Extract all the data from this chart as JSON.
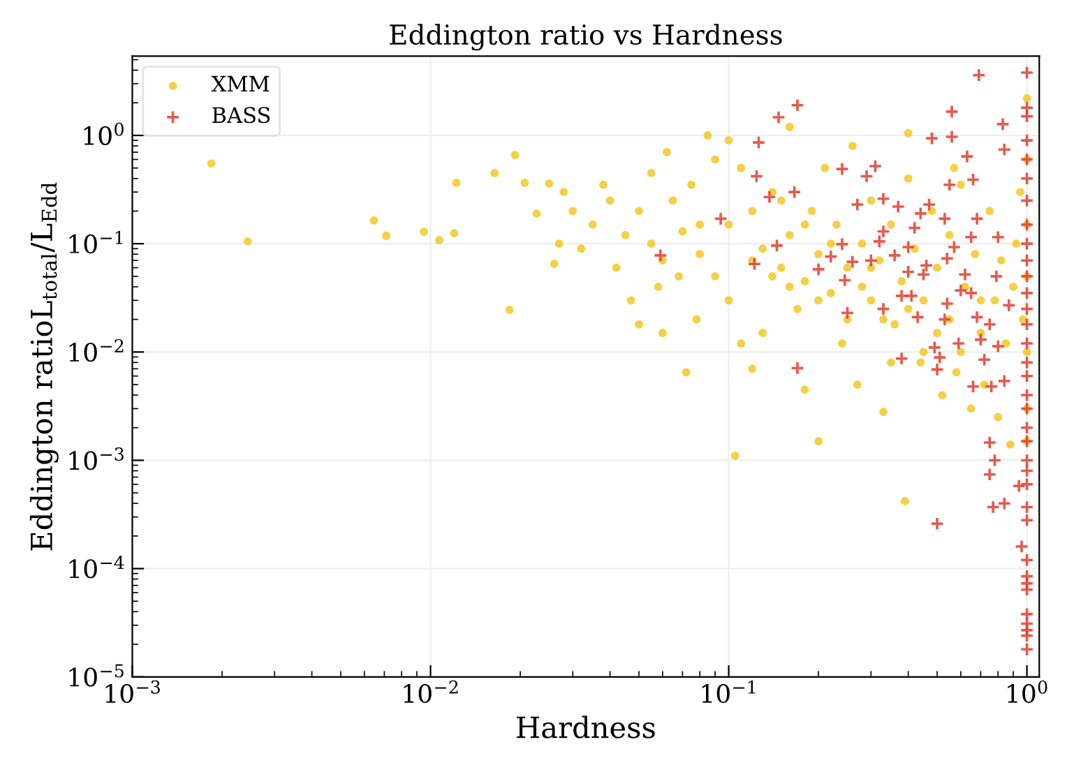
{
  "chart_data": {
    "type": "scatter",
    "title": "Eddington ratio vs Hardness",
    "xlabel": "Hardness",
    "ylabel": "Eddington ratioL$_{total}$/L$_{Edd}$",
    "log": "xy",
    "grid": true,
    "legend": "top left",
    "xlim": [
      0.001,
      1.1
    ],
    "ylim": [
      1e-05,
      5.4
    ],
    "xticks": [
      {
        "value": 0.001,
        "label": "10$^{−3}$"
      },
      {
        "value": 0.01,
        "label": "10$^{−2}$"
      },
      {
        "value": 0.1,
        "label": "10$^{−1}$"
      },
      {
        "value": 1,
        "label": "10$^{0}$"
      }
    ],
    "yticks": [
      {
        "value": 1e-05,
        "label": "10$^{−5}$"
      },
      {
        "value": 0.0001,
        "label": "10$^{−4}$"
      },
      {
        "value": 0.001,
        "label": "10$^{−3}$"
      },
      {
        "value": 0.01,
        "label": "10$^{−2}$"
      },
      {
        "value": 0.1,
        "label": "10$^{−1}$"
      },
      {
        "value": 1,
        "label": "10$^{0}$"
      }
    ],
    "series": [
      {
        "name": "XMM",
        "color": "#f2c416",
        "marker": "circle",
        "x": [
          0.00184,
          0.00244,
          0.00646,
          0.0071,
          0.0095,
          0.0107,
          0.012,
          0.0122,
          0.0164,
          0.0192,
          0.0184,
          0.0207,
          0.0227,
          0.025,
          0.028,
          0.03,
          0.027,
          0.026,
          0.032,
          0.035,
          0.038,
          0.04,
          0.042,
          0.045,
          0.047,
          0.05,
          0.05,
          0.055,
          0.055,
          0.058,
          0.06,
          0.062,
          0.065,
          0.068,
          0.07,
          0.072,
          0.075,
          0.078,
          0.08,
          0.085,
          0.09,
          0.1,
          0.11,
          0.12,
          0.1,
          0.09,
          0.1,
          0.11,
          0.105,
          0.12,
          0.13,
          0.14,
          0.15,
          0.16,
          0.16,
          0.17,
          0.18,
          0.18,
          0.19,
          0.2,
          0.2,
          0.21,
          0.22,
          0.23,
          0.24,
          0.25,
          0.26,
          0.27,
          0.28,
          0.3,
          0.3,
          0.32,
          0.33,
          0.35,
          0.36,
          0.38,
          0.39,
          0.4,
          0.42,
          0.44,
          0.45,
          0.48,
          0.5,
          0.52,
          0.55,
          0.55,
          0.58,
          0.6,
          0.62,
          0.65,
          0.67,
          0.7,
          0.72,
          0.75,
          0.78,
          0.8,
          0.82,
          0.85,
          0.88,
          0.9,
          0.92,
          0.95,
          0.97,
          1.0,
          1.0,
          1.0,
          1.0,
          1.0,
          1.0,
          1.0,
          0.4,
          0.57,
          0.12,
          0.14,
          0.16,
          0.2,
          0.22,
          0.25,
          0.28,
          0.3,
          0.33,
          0.4,
          0.45,
          0.5,
          0.6,
          0.7,
          0.08,
          0.06,
          0.18,
          0.15,
          0.13,
          0.35
        ],
        "values": [
          0.55,
          0.105,
          0.164,
          0.118,
          0.129,
          0.108,
          0.125,
          0.365,
          0.449,
          0.66,
          0.0245,
          0.365,
          0.19,
          0.36,
          0.3,
          0.2,
          0.1,
          0.065,
          0.09,
          0.15,
          0.35,
          0.25,
          0.06,
          0.12,
          0.03,
          0.2,
          0.018,
          0.45,
          0.1,
          0.04,
          0.015,
          0.7,
          0.25,
          0.05,
          0.13,
          0.0065,
          0.35,
          0.02,
          0.08,
          1.0,
          0.6,
          0.9,
          0.5,
          0.2,
          0.15,
          0.05,
          0.03,
          0.012,
          0.0011,
          0.007,
          0.09,
          0.3,
          0.06,
          1.2,
          0.12,
          0.025,
          0.045,
          0.0045,
          0.2,
          0.0015,
          0.08,
          0.5,
          0.035,
          0.15,
          0.012,
          0.06,
          0.8,
          0.005,
          0.1,
          0.03,
          0.25,
          0.07,
          0.0028,
          0.15,
          0.018,
          0.045,
          0.00042,
          0.4,
          0.09,
          0.008,
          0.03,
          0.2,
          0.06,
          0.004,
          0.12,
          0.02,
          0.0065,
          0.35,
          0.04,
          0.003,
          0.08,
          0.015,
          0.005,
          0.2,
          0.03,
          0.0025,
          0.07,
          0.012,
          0.0014,
          0.04,
          0.1,
          0.3,
          0.02,
          2.2,
          0.6,
          0.15,
          0.05,
          0.01,
          0.003,
          0.0015,
          1.05,
          0.5,
          0.07,
          0.05,
          0.04,
          0.03,
          0.1,
          0.02,
          0.04,
          0.06,
          0.02,
          0.025,
          0.01,
          0.015,
          0.01,
          0.03,
          0.15,
          0.07,
          0.15,
          0.25,
          0.015,
          0.008
        ]
      },
      {
        "name": "BASS",
        "color": "#e23d2d",
        "marker": "cross",
        "x": [
          0.69,
          1.0,
          0.17,
          0.147,
          0.56,
          0.83,
          0.48,
          0.56,
          0.126,
          0.84,
          0.63,
          0.31,
          0.24,
          0.124,
          0.29,
          0.66,
          0.55,
          0.166,
          0.33,
          0.137,
          0.27,
          0.47,
          0.37,
          0.44,
          0.53,
          0.094,
          0.68,
          0.42,
          0.33,
          0.65,
          0.8,
          0.32,
          0.145,
          0.24,
          0.4,
          0.57,
          0.059,
          0.22,
          0.36,
          0.3,
          0.26,
          0.54,
          0.122,
          0.46,
          0.2,
          0.4,
          0.45,
          0.245,
          0.62,
          0.79,
          0.38,
          0.41,
          0.54,
          0.6,
          0.65,
          0.87,
          0.33,
          0.25,
          0.43,
          0.53,
          0.68,
          0.75,
          0.59,
          0.7,
          0.8,
          0.49,
          0.38,
          0.51,
          0.72,
          0.17,
          0.5,
          0.84,
          0.66,
          0.76,
          0.75,
          0.78,
          0.75,
          0.77,
          0.84,
          0.5,
          0.94,
          0.96,
          1.0,
          1.0,
          1.0,
          1.0,
          1.0,
          1.0,
          1.0,
          1.0,
          1.0,
          1.0,
          1.0,
          1.0,
          1.0,
          1.0,
          1.0,
          1.0,
          1.0,
          1.0,
          1.0,
          1.0,
          1.0,
          1.0,
          1.0,
          1.0,
          1.0,
          1.0,
          1.0,
          1.0,
          1.0,
          1.0,
          1.0,
          1.0,
          1.0,
          1.0
        ],
        "values": [
          3.6,
          3.8,
          1.9,
          1.47,
          1.66,
          1.27,
          0.94,
          0.97,
          0.86,
          0.74,
          0.64,
          0.52,
          0.49,
          0.42,
          0.42,
          0.39,
          0.35,
          0.3,
          0.26,
          0.27,
          0.23,
          0.23,
          0.22,
          0.19,
          0.17,
          0.17,
          0.17,
          0.14,
          0.13,
          0.115,
          0.115,
          0.105,
          0.096,
          0.099,
          0.093,
          0.093,
          0.078,
          0.076,
          0.078,
          0.07,
          0.068,
          0.073,
          0.065,
          0.063,
          0.058,
          0.055,
          0.052,
          0.046,
          0.052,
          0.05,
          0.033,
          0.033,
          0.028,
          0.037,
          0.035,
          0.027,
          0.025,
          0.023,
          0.021,
          0.02,
          0.021,
          0.018,
          0.012,
          0.013,
          0.0113,
          0.011,
          0.0087,
          0.0089,
          0.0085,
          0.0071,
          0.0069,
          0.0054,
          0.0048,
          0.0048,
          0.00146,
          0.001,
          0.00074,
          0.00037,
          0.0004,
          0.00026,
          0.00058,
          0.00016,
          1.8,
          1.5,
          0.9,
          0.6,
          0.4,
          0.25,
          0.15,
          0.1,
          0.07,
          0.05,
          0.035,
          0.025,
          0.018,
          0.012,
          0.008,
          0.006,
          0.004,
          0.003,
          0.002,
          0.0015,
          0.001,
          0.0008,
          0.0006,
          0.00037,
          0.00028,
          0.00012,
          8.5e-05,
          7.3e-05,
          6.4e-05,
          3.8e-05,
          3.1e-05,
          2.7e-05,
          2.4e-05,
          1.8e-05
        ]
      }
    ]
  }
}
